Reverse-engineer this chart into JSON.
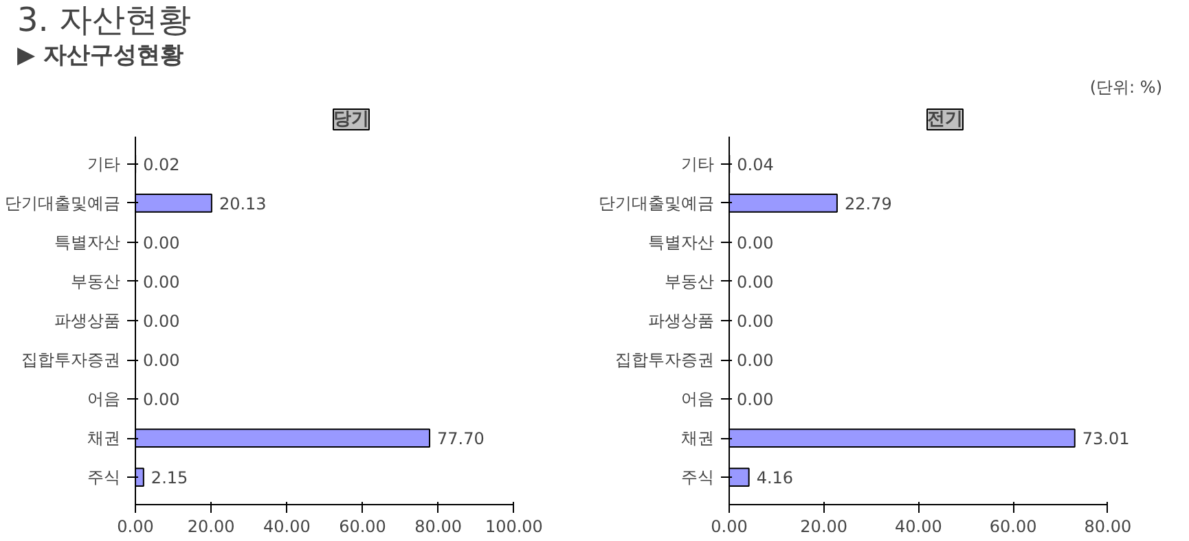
{
  "chart_data": [
    {
      "type": "bar",
      "orientation": "horizontal",
      "title": "당기",
      "annotations": [
        "3. 자산현황",
        "▶ 자산구성현황",
        "(단위: %)"
      ],
      "categories": [
        "기타",
        "단기대출및예금",
        "특별자산",
        "부동산",
        "파생상품",
        "집합투자증권",
        "어음",
        "채권",
        "주식"
      ],
      "values": [
        0.02,
        20.13,
        0.0,
        0.0,
        0.0,
        0.0,
        0.0,
        77.7,
        2.15
      ],
      "value_labels": [
        "0.02",
        "20.13",
        "0.00",
        "0.00",
        "0.00",
        "0.00",
        "0.00",
        "77.70",
        "2.15"
      ],
      "color": "#9999ff",
      "xlim": [
        0,
        100
      ],
      "xticks": [
        {
          "value": 0,
          "label": "0.00"
        },
        {
          "value": 20,
          "label": "20.00"
        },
        {
          "value": 40,
          "label": "40.00"
        },
        {
          "value": 60,
          "label": "60.00"
        },
        {
          "value": 80,
          "label": "80.00"
        },
        {
          "value": 100,
          "label": "100.00"
        }
      ],
      "grid": false
    },
    {
      "type": "bar",
      "orientation": "horizontal",
      "title": "전기",
      "categories": [
        "기타",
        "단기대출및예금",
        "특별자산",
        "부동산",
        "파생상품",
        "집합투자증권",
        "어음",
        "채권",
        "주식"
      ],
      "values": [
        0.04,
        22.79,
        0.0,
        0.0,
        0.0,
        0.0,
        0.0,
        73.01,
        4.16
      ],
      "value_labels": [
        "0.04",
        "22.79",
        "0.00",
        "0.00",
        "0.00",
        "0.00",
        "0.00",
        "73.01",
        "4.16"
      ],
      "color": "#9999ff",
      "xlim": [
        0,
        80
      ],
      "xticks": [
        {
          "value": 0,
          "label": "0.00"
        },
        {
          "value": 20,
          "label": "20.00"
        },
        {
          "value": 40,
          "label": "40.00"
        },
        {
          "value": 60,
          "label": "60.00"
        },
        {
          "value": 80,
          "label": "80.00"
        }
      ],
      "grid": false
    }
  ]
}
